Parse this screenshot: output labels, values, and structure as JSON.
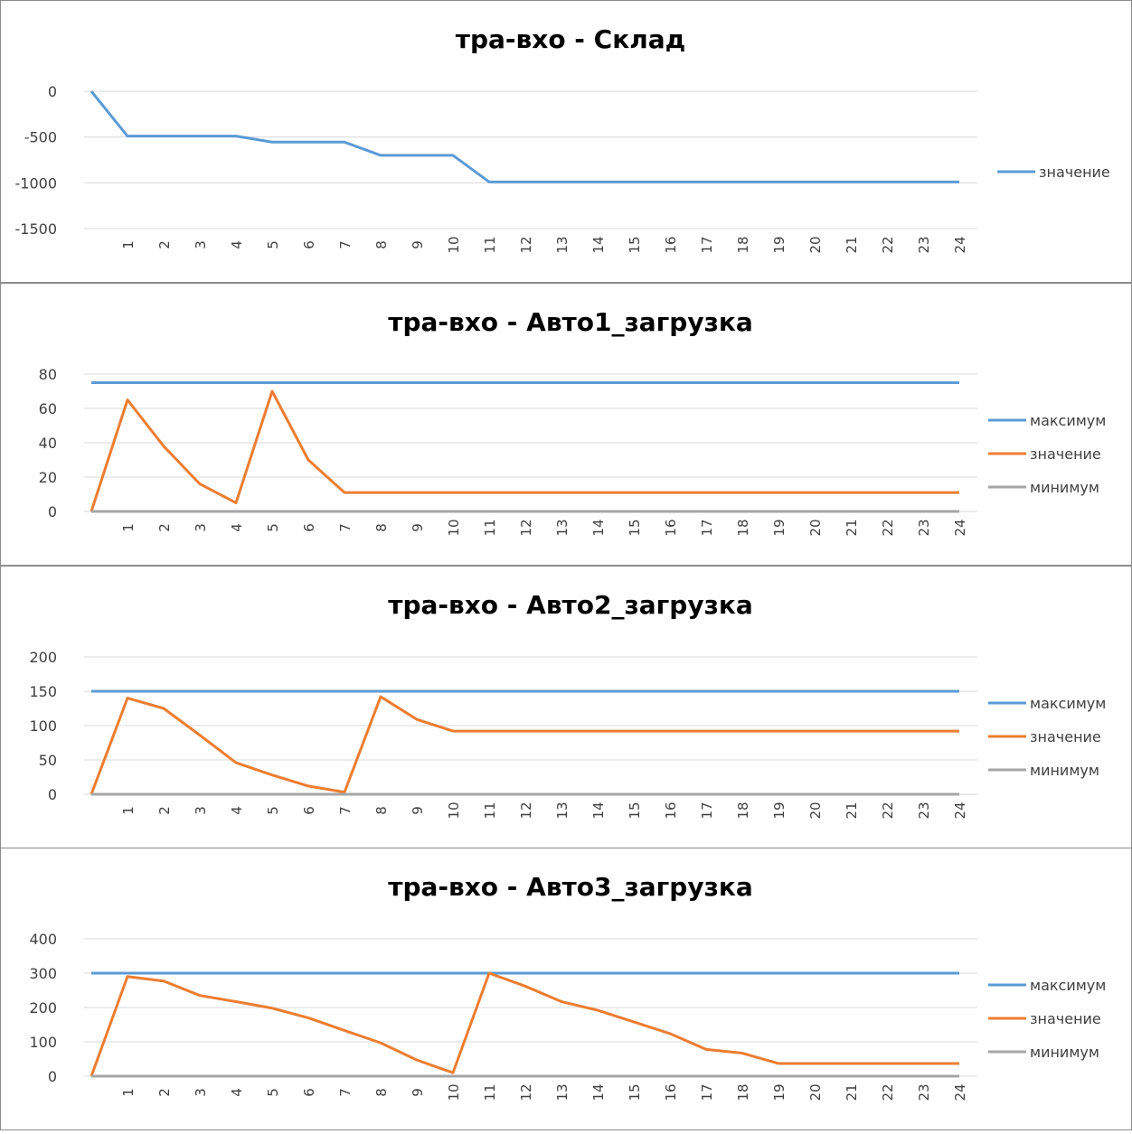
{
  "colors": {
    "max": "#5b9bd5",
    "value": "#ed7d31",
    "min": "#a5a5a5",
    "grid": "#d9d9d9"
  },
  "chart_data": [
    {
      "type": "line",
      "title": "тра-вхо - Склад",
      "ylim": [
        -1500,
        0
      ],
      "yticks": [
        0,
        -500,
        -1000,
        -1500
      ],
      "categories": [
        "",
        "1",
        "2",
        "3",
        "4",
        "5",
        "6",
        "7",
        "8",
        "9",
        "10",
        "11",
        "12",
        "13",
        "14",
        "15",
        "16",
        "17",
        "18",
        "19",
        "20",
        "21",
        "22",
        "23",
        "24"
      ],
      "legend": "right",
      "series": [
        {
          "name": "значение",
          "color": "#5b9bd5",
          "values": [
            0,
            -490,
            -490,
            -490,
            -490,
            -555,
            -555,
            -555,
            -700,
            -700,
            -700,
            -990,
            -990,
            -990,
            -990,
            -990,
            -990,
            -990,
            -990,
            -990,
            -990,
            -990,
            -990,
            -990,
            -990
          ]
        }
      ]
    },
    {
      "type": "line",
      "title": "тра-вхо - Авто1_загрузка",
      "ylim": [
        0,
        80
      ],
      "yticks": [
        0,
        20,
        40,
        60,
        80
      ],
      "categories": [
        "",
        "1",
        "2",
        "3",
        "4",
        "5",
        "6",
        "7",
        "8",
        "9",
        "10",
        "11",
        "12",
        "13",
        "14",
        "15",
        "16",
        "17",
        "18",
        "19",
        "20",
        "21",
        "22",
        "23",
        "24"
      ],
      "legend": "right",
      "series": [
        {
          "name": "максимум",
          "color": "#5b9bd5",
          "values": [
            75,
            75,
            75,
            75,
            75,
            75,
            75,
            75,
            75,
            75,
            75,
            75,
            75,
            75,
            75,
            75,
            75,
            75,
            75,
            75,
            75,
            75,
            75,
            75,
            75
          ]
        },
        {
          "name": "значение",
          "color": "#ed7d31",
          "values": [
            0,
            65,
            38,
            16,
            5,
            70,
            30,
            11,
            11,
            11,
            11,
            11,
            11,
            11,
            11,
            11,
            11,
            11,
            11,
            11,
            11,
            11,
            11,
            11,
            11
          ]
        },
        {
          "name": "минимум",
          "color": "#a5a5a5",
          "values": [
            0,
            0,
            0,
            0,
            0,
            0,
            0,
            0,
            0,
            0,
            0,
            0,
            0,
            0,
            0,
            0,
            0,
            0,
            0,
            0,
            0,
            0,
            0,
            0,
            0
          ]
        }
      ]
    },
    {
      "type": "line",
      "title": "тра-вхо - Авто2_загрузка",
      "ylim": [
        0,
        200
      ],
      "yticks": [
        0,
        50,
        100,
        150,
        200
      ],
      "categories": [
        "",
        "1",
        "2",
        "3",
        "4",
        "5",
        "6",
        "7",
        "8",
        "9",
        "10",
        "11",
        "12",
        "13",
        "14",
        "15",
        "16",
        "17",
        "18",
        "19",
        "20",
        "21",
        "22",
        "23",
        "24"
      ],
      "legend": "right",
      "series": [
        {
          "name": "максимум",
          "color": "#5b9bd5",
          "values": [
            150,
            150,
            150,
            150,
            150,
            150,
            150,
            150,
            150,
            150,
            150,
            150,
            150,
            150,
            150,
            150,
            150,
            150,
            150,
            150,
            150,
            150,
            150,
            150,
            150
          ]
        },
        {
          "name": "значение",
          "color": "#ed7d31",
          "values": [
            0,
            140,
            125,
            86,
            46,
            28,
            12,
            3,
            142,
            109,
            92,
            92,
            92,
            92,
            92,
            92,
            92,
            92,
            92,
            92,
            92,
            92,
            92,
            92,
            92
          ]
        },
        {
          "name": "минимум",
          "color": "#a5a5a5",
          "values": [
            0,
            0,
            0,
            0,
            0,
            0,
            0,
            0,
            0,
            0,
            0,
            0,
            0,
            0,
            0,
            0,
            0,
            0,
            0,
            0,
            0,
            0,
            0,
            0,
            0
          ]
        }
      ]
    },
    {
      "type": "line",
      "title": "тра-вхо - Авто3_загрузка",
      "ylim": [
        0,
        400
      ],
      "yticks": [
        0,
        100,
        200,
        300,
        400
      ],
      "categories": [
        "",
        "1",
        "2",
        "3",
        "4",
        "5",
        "6",
        "7",
        "8",
        "9",
        "10",
        "11",
        "12",
        "13",
        "14",
        "15",
        "16",
        "17",
        "18",
        "19",
        "20",
        "21",
        "22",
        "23",
        "24"
      ],
      "legend": "right",
      "series": [
        {
          "name": "максимум",
          "color": "#5b9bd5",
          "values": [
            300,
            300,
            300,
            300,
            300,
            300,
            300,
            300,
            300,
            300,
            300,
            300,
            300,
            300,
            300,
            300,
            300,
            300,
            300,
            300,
            300,
            300,
            300,
            300,
            300
          ]
        },
        {
          "name": "значение",
          "color": "#ed7d31",
          "values": [
            0,
            290,
            277,
            235,
            217,
            198,
            170,
            133,
            97,
            47,
            10,
            300,
            262,
            217,
            192,
            158,
            124,
            78,
            67,
            37,
            37,
            37,
            37,
            37,
            37
          ]
        },
        {
          "name": "минимум",
          "color": "#a5a5a5",
          "values": [
            0,
            0,
            0,
            0,
            0,
            0,
            0,
            0,
            0,
            0,
            0,
            0,
            0,
            0,
            0,
            0,
            0,
            0,
            0,
            0,
            0,
            0,
            0,
            0,
            0
          ]
        }
      ]
    }
  ]
}
